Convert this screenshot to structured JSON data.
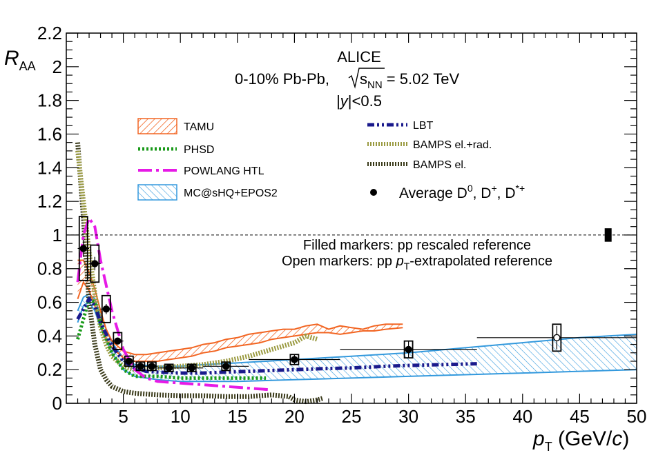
{
  "chart_data": {
    "type": "line",
    "header": {
      "experiment": "ALICE",
      "system_prefix": "0-10% Pb-Pb, ",
      "system_sqrt": "s",
      "system_sub": "NN",
      "system_suffix": " = 5.02 TeV",
      "rapidity_prefix": "|",
      "rapidity_var": "y",
      "rapidity_suffix": "|<0.5"
    },
    "xaxis": {
      "label_var": "p",
      "label_sub": "T",
      "label_unit_open": " (GeV/",
      "label_unit_var": "c",
      "label_unit_close": ")",
      "range": [
        0,
        50
      ],
      "ticks": [
        5,
        10,
        15,
        20,
        25,
        30,
        35,
        40,
        45,
        50
      ]
    },
    "yaxis": {
      "label_var": "R",
      "label_sub": "AA",
      "range": [
        0,
        2.2
      ],
      "ticks": [
        0,
        0.2,
        0.4,
        0.6,
        0.8,
        1,
        1.2,
        1.4,
        1.6,
        1.8,
        2,
        2.2
      ]
    },
    "reference_line": 1,
    "normalization_box": {
      "x": 47.5,
      "y_low": 0.96,
      "y_high": 1.04
    },
    "notes": {
      "filled": "Filled markers: pp rescaled reference",
      "open_prefix": "Open markers: pp ",
      "open_var": "p",
      "open_sub": "T",
      "open_suffix": "-extrapolated reference"
    },
    "legend": {
      "tamu": "TAMU",
      "phsd": "PHSD",
      "powlang": "POWLANG HTL",
      "mcshq": "MC@sHQ+EPOS2",
      "lbt": "LBT",
      "bamps_rad": "BAMPS el.+rad.",
      "bamps_el": "BAMPS el.",
      "average_prefix": "Average D",
      "average_sup0": "0",
      "average_mid1": ", D",
      "average_sup1": "+",
      "average_mid2": ", D",
      "average_sup2": "*+"
    },
    "colors": {
      "tamu": "#f26522",
      "phsd": "#1a9a1a",
      "powlang": "#e61ae6",
      "mcshq": "#3399dd",
      "lbt": "#1a1a8c",
      "bamps_rad": "#9a9a40",
      "bamps_el": "#3a3a1a"
    },
    "series": [
      {
        "key": "filled",
        "points": [
          {
            "x": 1.5,
            "y": 0.92,
            "xlo": 1,
            "xhi": 2,
            "ey": 0.05,
            "sy": 0.19
          },
          {
            "x": 2.5,
            "y": 0.83,
            "xlo": 2,
            "xhi": 3,
            "ey": 0.04,
            "sy": 0.11
          },
          {
            "x": 3.5,
            "y": 0.56,
            "xlo": 3,
            "xhi": 4,
            "ey": 0.03,
            "sy": 0.08
          },
          {
            "x": 4.5,
            "y": 0.37,
            "xlo": 4,
            "xhi": 5,
            "ey": 0.02,
            "sy": 0.05
          },
          {
            "x": 5.5,
            "y": 0.25,
            "xlo": 5,
            "xhi": 6,
            "ey": 0.015,
            "sy": 0.03
          },
          {
            "x": 6.5,
            "y": 0.22,
            "xlo": 6,
            "xhi": 7,
            "ey": 0.012,
            "sy": 0.025
          },
          {
            "x": 7.5,
            "y": 0.22,
            "xlo": 7,
            "xhi": 8,
            "ey": 0.012,
            "sy": 0.025
          },
          {
            "x": 9,
            "y": 0.21,
            "xlo": 8,
            "xhi": 10,
            "ey": 0.01,
            "sy": 0.022
          },
          {
            "x": 11,
            "y": 0.21,
            "xlo": 10,
            "xhi": 12,
            "ey": 0.01,
            "sy": 0.022
          },
          {
            "x": 14,
            "y": 0.22,
            "xlo": 12,
            "xhi": 16,
            "ey": 0.015,
            "sy": 0.025
          },
          {
            "x": 20,
            "y": 0.26,
            "xlo": 16,
            "xhi": 24,
            "ey": 0.03,
            "sy": 0.03
          },
          {
            "x": 30,
            "y": 0.32,
            "xlo": 24,
            "xhi": 36,
            "ey": 0.05,
            "sy": 0.05
          }
        ]
      },
      {
        "key": "open",
        "points": [
          {
            "x": 43,
            "y": 0.39,
            "xlo": 36,
            "xhi": 50,
            "ey": 0.07,
            "sy": 0.08
          }
        ]
      },
      {
        "key": "tamu",
        "low": [
          [
            1,
            0.62
          ],
          [
            1.5,
            0.72
          ],
          [
            2,
            0.67
          ],
          [
            2.5,
            0.58
          ],
          [
            3,
            0.46
          ],
          [
            3.5,
            0.38
          ],
          [
            4,
            0.33
          ],
          [
            5,
            0.27
          ],
          [
            6,
            0.25
          ],
          [
            7,
            0.25
          ],
          [
            8,
            0.25
          ],
          [
            9,
            0.26
          ],
          [
            10,
            0.27
          ],
          [
            11,
            0.28
          ],
          [
            12,
            0.3
          ],
          [
            13,
            0.31
          ],
          [
            14,
            0.33
          ],
          [
            15,
            0.34
          ],
          [
            16,
            0.35
          ],
          [
            17,
            0.36
          ],
          [
            18,
            0.38
          ],
          [
            19,
            0.39
          ],
          [
            20,
            0.4
          ],
          [
            21,
            0.41
          ],
          [
            22,
            0.42
          ],
          [
            23,
            0.42
          ],
          [
            24,
            0.41
          ],
          [
            25,
            0.42
          ],
          [
            26,
            0.43
          ],
          [
            27,
            0.43
          ],
          [
            28,
            0.44
          ],
          [
            29.5,
            0.45
          ]
        ],
        "high": [
          [
            1,
            0.85
          ],
          [
            1.5,
            0.85
          ],
          [
            2,
            0.78
          ],
          [
            2.5,
            0.68
          ],
          [
            3,
            0.55
          ],
          [
            3.5,
            0.44
          ],
          [
            4,
            0.37
          ],
          [
            5,
            0.31
          ],
          [
            6,
            0.29
          ],
          [
            7,
            0.29
          ],
          [
            8,
            0.3
          ],
          [
            9,
            0.31
          ],
          [
            10,
            0.32
          ],
          [
            11,
            0.33
          ],
          [
            12,
            0.35
          ],
          [
            13,
            0.36
          ],
          [
            14,
            0.38
          ],
          [
            15,
            0.39
          ],
          [
            16,
            0.41
          ],
          [
            17,
            0.42
          ],
          [
            18,
            0.43
          ],
          [
            19,
            0.44
          ],
          [
            20,
            0.44
          ],
          [
            21,
            0.46
          ],
          [
            22,
            0.47
          ],
          [
            23,
            0.44
          ],
          [
            24,
            0.46
          ],
          [
            25,
            0.45
          ],
          [
            26,
            0.44
          ],
          [
            27,
            0.46
          ],
          [
            28,
            0.47
          ],
          [
            29.5,
            0.47
          ]
        ]
      },
      {
        "key": "mcshq",
        "low": [
          [
            1,
            0.48
          ],
          [
            1.5,
            0.58
          ],
          [
            2,
            0.6
          ],
          [
            2.5,
            0.55
          ],
          [
            3,
            0.45
          ],
          [
            4,
            0.3
          ],
          [
            5,
            0.2
          ],
          [
            6,
            0.16
          ],
          [
            8,
            0.14
          ],
          [
            10,
            0.13
          ],
          [
            12,
            0.13
          ],
          [
            15,
            0.13
          ],
          [
            20,
            0.14
          ],
          [
            25,
            0.15
          ],
          [
            30,
            0.16
          ],
          [
            35,
            0.17
          ],
          [
            40,
            0.18
          ],
          [
            45,
            0.19
          ],
          [
            50,
            0.2
          ]
        ],
        "high": [
          [
            1,
            0.55
          ],
          [
            1.5,
            0.63
          ],
          [
            2,
            0.65
          ],
          [
            2.5,
            0.62
          ],
          [
            3,
            0.52
          ],
          [
            4,
            0.36
          ],
          [
            5,
            0.27
          ],
          [
            6,
            0.23
          ],
          [
            8,
            0.22
          ],
          [
            10,
            0.22
          ],
          [
            12,
            0.23
          ],
          [
            15,
            0.24
          ],
          [
            20,
            0.26
          ],
          [
            25,
            0.28
          ],
          [
            30,
            0.3
          ],
          [
            35,
            0.33
          ],
          [
            40,
            0.36
          ],
          [
            45,
            0.39
          ],
          [
            50,
            0.41
          ]
        ]
      },
      {
        "key": "lbt",
        "points": [
          [
            1,
            0.5
          ],
          [
            1.5,
            0.56
          ],
          [
            2,
            0.62
          ],
          [
            2.5,
            0.58
          ],
          [
            3,
            0.48
          ],
          [
            4,
            0.34
          ],
          [
            5,
            0.25
          ],
          [
            6,
            0.21
          ],
          [
            7,
            0.19
          ],
          [
            8,
            0.185
          ],
          [
            10,
            0.18
          ],
          [
            12,
            0.18
          ],
          [
            14,
            0.185
          ],
          [
            16,
            0.19
          ],
          [
            18,
            0.195
          ],
          [
            20,
            0.2
          ],
          [
            22,
            0.205
          ],
          [
            25,
            0.21
          ],
          [
            28,
            0.22
          ],
          [
            30,
            0.225
          ],
          [
            33,
            0.23
          ],
          [
            36,
            0.235
          ]
        ]
      },
      {
        "key": "phsd",
        "points": [
          [
            1,
            0.38
          ],
          [
            1.5,
            0.5
          ],
          [
            2,
            0.62
          ],
          [
            2.5,
            0.6
          ],
          [
            3,
            0.47
          ],
          [
            4,
            0.3
          ],
          [
            5,
            0.2
          ],
          [
            6,
            0.16
          ],
          [
            7,
            0.16
          ],
          [
            8,
            0.16
          ],
          [
            10,
            0.15
          ],
          [
            12,
            0.15
          ],
          [
            14,
            0.15
          ],
          [
            16,
            0.15
          ],
          [
            17.5,
            0.15
          ]
        ]
      },
      {
        "key": "powlang",
        "points": [
          [
            1,
            0.72
          ],
          [
            1.5,
            1.0
          ],
          [
            2,
            1.1
          ],
          [
            2.5,
            1.05
          ],
          [
            3,
            0.85
          ],
          [
            4,
            0.55
          ],
          [
            5,
            0.32
          ],
          [
            6,
            0.2
          ],
          [
            7,
            0.15
          ],
          [
            8,
            0.13
          ],
          [
            10,
            0.12
          ],
          [
            12,
            0.11
          ],
          [
            14,
            0.1
          ],
          [
            16,
            0.09
          ],
          [
            18,
            0.08
          ]
        ]
      },
      {
        "key": "bamps_rad",
        "points": [
          [
            1,
            1.5
          ],
          [
            1.5,
            1.2
          ],
          [
            2,
            0.9
          ],
          [
            2.5,
            0.65
          ],
          [
            3,
            0.45
          ],
          [
            3.5,
            0.35
          ],
          [
            4,
            0.28
          ],
          [
            5,
            0.22
          ],
          [
            6,
            0.2
          ],
          [
            7,
            0.2
          ],
          [
            8,
            0.21
          ],
          [
            10,
            0.22
          ],
          [
            12,
            0.23
          ],
          [
            14,
            0.25
          ],
          [
            16,
            0.28
          ],
          [
            18,
            0.32
          ],
          [
            20,
            0.36
          ],
          [
            21,
            0.4
          ],
          [
            22,
            0.38
          ]
        ]
      },
      {
        "key": "bamps_el",
        "points": [
          [
            1,
            1.55
          ],
          [
            1.5,
            1.1
          ],
          [
            2,
            0.6
          ],
          [
            2.5,
            0.35
          ],
          [
            3,
            0.2
          ],
          [
            3.5,
            0.14
          ],
          [
            4,
            0.1
          ],
          [
            5,
            0.07
          ],
          [
            6,
            0.06
          ],
          [
            8,
            0.05
          ],
          [
            10,
            0.045
          ],
          [
            12,
            0.045
          ],
          [
            14,
            0.04
          ],
          [
            16,
            0.04
          ],
          [
            18,
            0.05
          ],
          [
            19.5,
            0.04
          ],
          [
            20,
            0.02
          ],
          [
            21,
            0.01
          ],
          [
            22,
            0.02
          ],
          [
            22.5,
            0.03
          ]
        ]
      }
    ]
  }
}
